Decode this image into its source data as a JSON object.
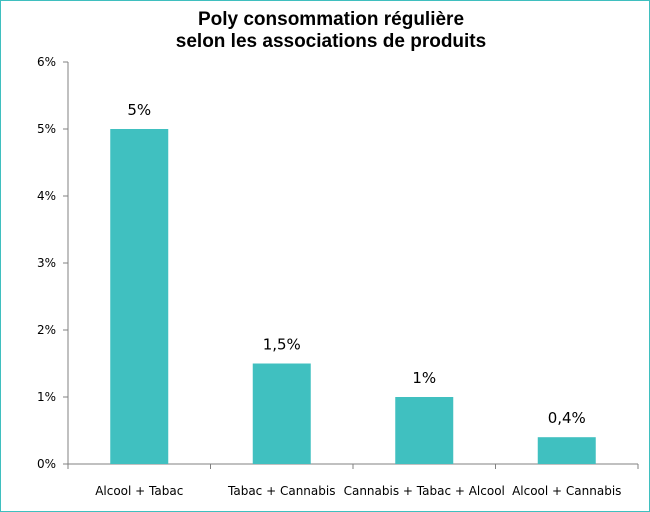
{
  "chart_data": {
    "type": "bar",
    "title_line1": "Poly consommation régulière",
    "title_line2": "selon les associations de produits",
    "xlabel": "",
    "ylabel": "",
    "categories": [
      "Alcool + Tabac",
      "Tabac + Cannabis",
      "Cannabis + Tabac + Alcool",
      "Alcool + Cannabis"
    ],
    "values": [
      5,
      1.5,
      1,
      0.4
    ],
    "data_labels": [
      "5%",
      "1,5%",
      "1%",
      "0,4%"
    ],
    "ylim": [
      0,
      6
    ],
    "y_ticks": [
      0,
      1,
      2,
      3,
      4,
      5,
      6
    ],
    "y_tick_labels": [
      "0%",
      "1%",
      "2%",
      "3%",
      "4%",
      "5%",
      "6%"
    ],
    "grid": false,
    "legend": "none",
    "colors": {
      "bar": "#40c0c0",
      "axis": "#808080",
      "border": "#3fbfbf"
    }
  }
}
